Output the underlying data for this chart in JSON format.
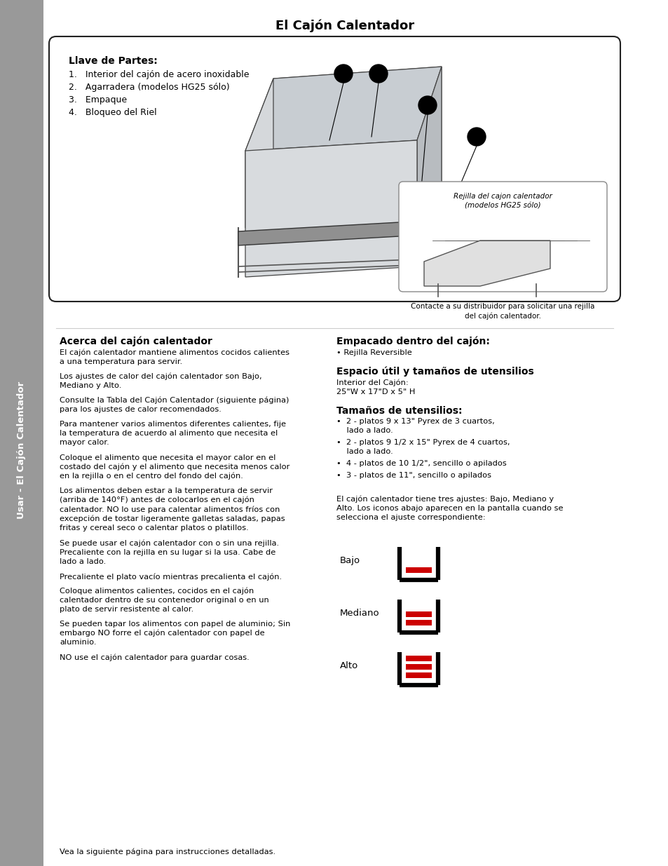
{
  "title": "El Cajón Calentador",
  "sidebar_text": "Usar - El Cajón Calentador",
  "sidebar_color": "#999999",
  "bg_color": "#ffffff",
  "box_title": "Llave de Partes:",
  "box_items": [
    "1.   Interior del cajón de acero inoxidable",
    "2.   Agarradera (modelos HG25 sólo)",
    "3.   Empaque",
    "4.   Bloqueo del Riel"
  ],
  "rejilla_title": "Rejilla del cajon calentador\n(modelos HG25 sólo)",
  "contacte_text": "Contacte a su distribuidor para solicitar una rejilla\ndel cajón calentador.",
  "left_col_title": "Acerca del cajón calentador",
  "left_col_paragraphs": [
    "El cajón calentador mantiene alimentos cocidos calientes\na una temperatura para servir.",
    "Los ajustes de calor del cajón calentador son Bajo,\nMediano y Alto.",
    "Consulte la Tabla del Cajón Calentador (siguiente página)\npara los ajustes de calor recomendados.",
    "Para mantener varios alimentos diferentes calientes, fije\nla temperatura de acuerdo al alimento que necesita el\nmayor calor.",
    "Coloque el alimento que necesita el mayor calor en el\ncostado del cajón y el alimento que necesita menos calor\nen la rejilla o en el centro del fondo del cajón.",
    "Los alimentos deben estar a la temperatura de servir\n(arriba de 140°F) antes de colocarlos en el cajón\ncalentador. NO lo use para calentar alimentos fríos con\nexcepción de tostar ligeramente galletas saladas, papas\nfritas y cereal seco o calentar platos o platillos.",
    "Se puede usar el cajón calentador con o sin una rejilla.\nPrecaliente con la rejilla en su lugar si la usa. Cabe de\nlado a lado.",
    "Precaliente el plato vacío mientras precalienta el cajón.",
    "Coloque alimentos calientes, cocidos en el cajón\ncalentador dentro de su contenedor original o en un\nplato de servir resistente al calor.",
    "Se pueden tapar los alimentos con papel de aluminio; Sin\nembargo NO forre el cajón calentador con papel de\naluminio.",
    "NO use el cajón calentador para guardar cosas."
  ],
  "left_col_footer": "Vea la siguiente página para instrucciones detalladas.",
  "right_col_title1": "Empacado dentro del cajón:",
  "right_col_bullet1": "• Rejilla Reversible",
  "right_col_title2": "Espacio útil y tamaños de utensilios",
  "right_col_sub2": "Interior del Cajón:\n25\"W x 17\"D x 5\" H",
  "right_col_title3": "Tamaños de utensilios:",
  "right_col_bullets3": [
    "•  2 - platos 9 x 13\" Pyrex de 3 cuartos,\n    lado a lado.",
    "•  2 - platos 9 1/2 x 15\" Pyrex de 4 cuartos,\n    lado a lado.",
    "•  4 - platos de 10 1/2\", sencillo o apilados",
    "•  3 - platos de 11\", sencillo o apilados"
  ],
  "right_col_para": "El cajón calentador tiene tres ajustes: Bajo, Mediano y\nAlto. Los iconos abajo aparecen en la pantalla cuando se\nselecciona el ajuste correspondiente:",
  "heat_labels": [
    "Bajo",
    "Mediano",
    "Alto"
  ],
  "heat_bars": [
    1,
    2,
    3
  ]
}
